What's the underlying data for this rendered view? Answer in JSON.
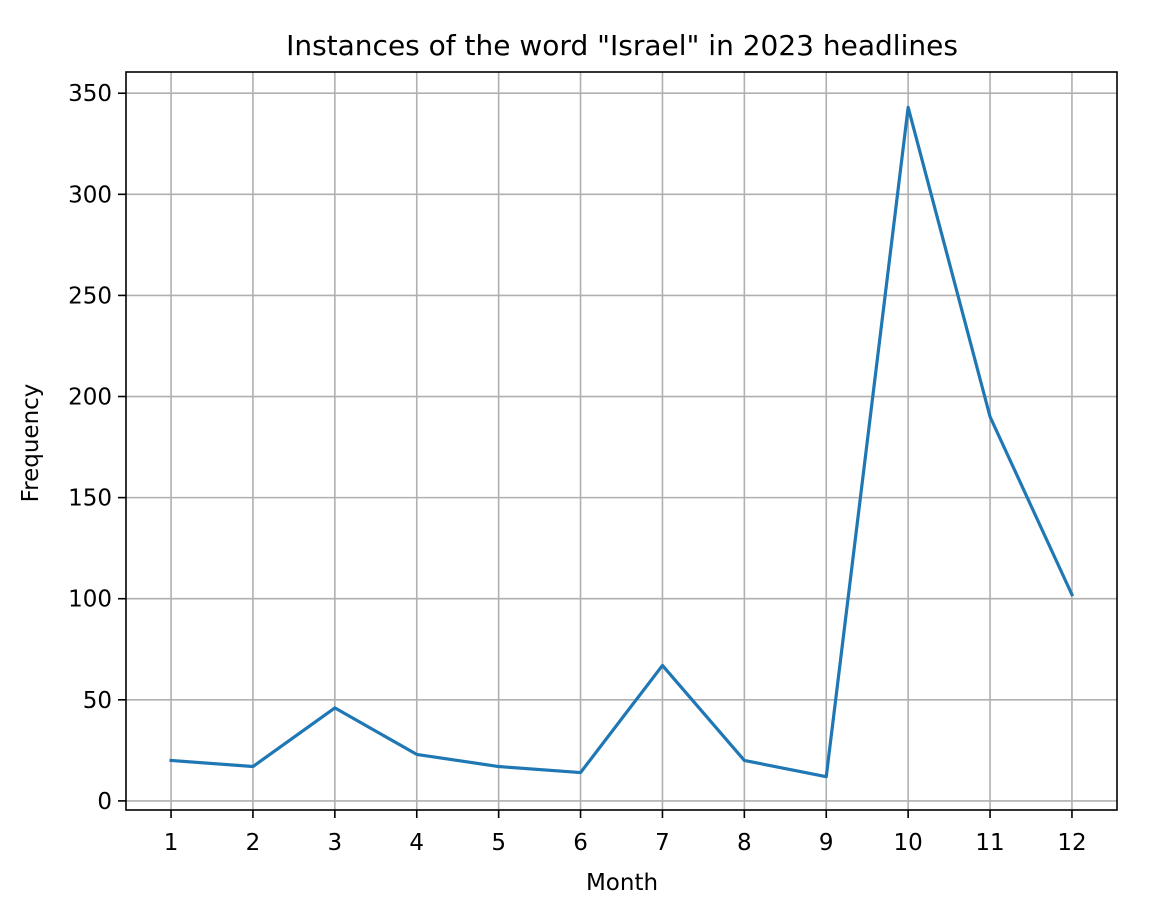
{
  "chart_data": {
    "type": "line",
    "title": "Instances of the word \"Israel\" in 2023 headlines",
    "xlabel": "Month",
    "ylabel": "Frequency",
    "x": [
      1,
      2,
      3,
      4,
      5,
      6,
      7,
      8,
      9,
      10,
      11,
      12
    ],
    "series": [
      {
        "values": [
          20,
          17,
          46,
          23,
          17,
          14,
          67,
          20,
          12,
          343,
          190,
          102
        ],
        "color": "#1f77b4"
      }
    ],
    "xlim": [
      0.45,
      12.55
    ],
    "ylim": [
      -4.5,
      360.5
    ],
    "xticks": [
      "1",
      "2",
      "3",
      "4",
      "5",
      "6",
      "7",
      "8",
      "9",
      "10",
      "11",
      "12"
    ],
    "yticks": [
      0,
      50,
      100,
      150,
      200,
      250,
      300,
      350
    ],
    "grid": true
  }
}
